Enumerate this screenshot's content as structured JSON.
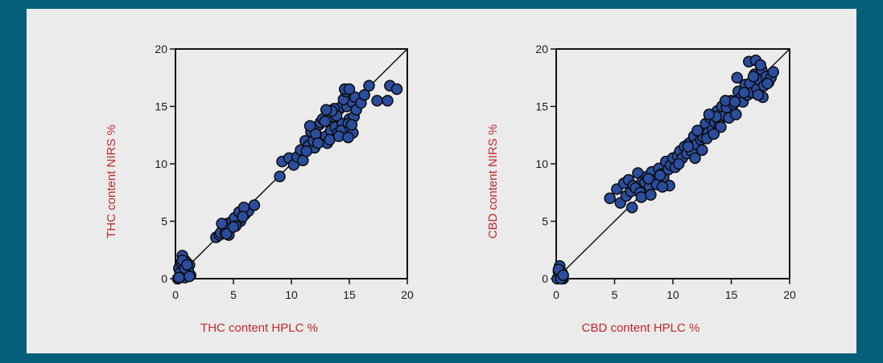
{
  "colors": {
    "background": "#035f7a",
    "panel": "#ebebeb",
    "axis_title": "#c0282d",
    "marker_fill": "#2b4d9c",
    "marker_stroke": "#0a0a0a"
  },
  "chart_data": [
    {
      "type": "scatter",
      "title": "",
      "xlabel": "THC content HPLC %",
      "ylabel": "THC content NIRS %",
      "xlim": [
        0,
        20
      ],
      "ylim": [
        0,
        20
      ],
      "xticks": [
        0,
        5,
        10,
        15,
        20
      ],
      "yticks": [
        0,
        5,
        10,
        15,
        20
      ],
      "grid": false,
      "identity_line": true,
      "series": [
        {
          "x": [
            0.2,
            0.4,
            0.5,
            0.6,
            0.7,
            0.8,
            0.9,
            1.0,
            1.1,
            1.2,
            0.3,
            0.6,
            0.8,
            1.0,
            1.3,
            0.5,
            0.7,
            0.9,
            1.1,
            0.4,
            0.8,
            1.2,
            0.6,
            1.0,
            0.3,
            3.5,
            3.8,
            4.0,
            4.2,
            4.4,
            4.6,
            4.8,
            5.0,
            5.2,
            5.4,
            5.6,
            5.8,
            6.0,
            6.3,
            6.8,
            4.1,
            4.5,
            4.9,
            5.3,
            5.7,
            3.9,
            4.3,
            4.7,
            5.1,
            5.5,
            5.9,
            4.0,
            4.6,
            5.2,
            5.8,
            4.4,
            5.0,
            9.0,
            9.2,
            9.8,
            10.2,
            10.5,
            10.8,
            11.0,
            11.2,
            11.5,
            11.7,
            12.0,
            12.2,
            12.4,
            12.6,
            12.8,
            13.0,
            13.2,
            13.4,
            13.6,
            13.8,
            14.0,
            14.2,
            14.4,
            14.6,
            14.8,
            15.0,
            15.2,
            15.4,
            15.6,
            11.3,
            11.9,
            12.5,
            13.1,
            13.7,
            14.3,
            14.9,
            15.5,
            12.1,
            12.7,
            13.3,
            13.9,
            14.5,
            15.1,
            12.9,
            13.5,
            14.1,
            14.7,
            15.3,
            11.6,
            14.6,
            15.0,
            16.0,
            16.3,
            16.7,
            17.4,
            18.3,
            18.5,
            19.1,
            14.9,
            15.2,
            13.0,
            12.3
          ],
          "y": [
            0.0,
            0.3,
            0.6,
            0.2,
            1.0,
            0.5,
            1.5,
            0.8,
            0.4,
            1.2,
            0.9,
            2.0,
            0.1,
            0.6,
            0.3,
            1.4,
            0.4,
            1.1,
            0.7,
            0.5,
            0.9,
            0.2,
            1.6,
            1.2,
            0.1,
            3.6,
            3.8,
            4.0,
            4.4,
            4.1,
            4.6,
            4.5,
            5.1,
            4.8,
            5.3,
            5.0,
            5.5,
            5.6,
            5.9,
            6.4,
            4.3,
            4.8,
            5.0,
            5.0,
            5.7,
            4.0,
            4.0,
            4.4,
            5.3,
            5.8,
            6.2,
            4.8,
            3.8,
            4.6,
            5.4,
            3.9,
            4.5,
            8.9,
            10.2,
            10.5,
            9.9,
            10.6,
            11.2,
            10.3,
            12.0,
            11.6,
            12.8,
            11.4,
            12.5,
            13.4,
            12.2,
            13.8,
            12.4,
            14.0,
            12.9,
            14.5,
            13.2,
            12.7,
            14.9,
            13.5,
            12.8,
            15.0,
            13.9,
            15.4,
            14.1,
            14.7,
            11.1,
            12.0,
            13.6,
            11.8,
            14.8,
            12.9,
            13.5,
            15.8,
            12.6,
            13.9,
            12.1,
            14.2,
            15.6,
            13.1,
            13.7,
            14.6,
            12.4,
            16.3,
            12.7,
            13.3,
            16.5,
            16.5,
            15.3,
            16.0,
            16.8,
            15.5,
            15.5,
            16.8,
            16.5,
            12.3,
            13.4,
            14.7,
            11.8
          ]
        }
      ]
    },
    {
      "type": "scatter",
      "title": "",
      "xlabel": "CBD content HPLC %",
      "ylabel": "CBD content NIRS %",
      "xlim": [
        0,
        20
      ],
      "ylim": [
        0,
        20
      ],
      "xticks": [
        0,
        5,
        10,
        15,
        20
      ],
      "yticks": [
        0,
        5,
        10,
        15,
        20
      ],
      "grid": false,
      "identity_line": true,
      "series": [
        {
          "x": [
            0.1,
            0.2,
            0.3,
            0.4,
            0.5,
            0.6,
            0.3,
            0.5,
            0.2,
            0.4,
            0.6,
            4.6,
            5.2,
            5.5,
            5.8,
            6.0,
            6.2,
            6.4,
            6.6,
            6.8,
            7.0,
            7.2,
            7.4,
            7.6,
            7.8,
            8.0,
            8.2,
            8.4,
            8.6,
            8.8,
            9.0,
            9.2,
            9.4,
            9.6,
            9.8,
            10.0,
            10.2,
            10.4,
            10.6,
            10.8,
            11.0,
            11.2,
            11.4,
            11.6,
            11.8,
            12.0,
            12.2,
            12.4,
            12.6,
            12.8,
            13.0,
            13.2,
            13.4,
            13.6,
            13.8,
            14.0,
            14.2,
            14.4,
            14.6,
            14.8,
            15.0,
            15.2,
            15.4,
            15.6,
            15.8,
            16.0,
            16.2,
            16.4,
            16.6,
            16.8,
            17.0,
            17.2,
            17.4,
            17.6,
            17.8,
            18.0,
            18.2,
            18.4,
            18.6,
            6.5,
            7.3,
            8.1,
            8.9,
            9.7,
            10.5,
            11.3,
            12.1,
            12.9,
            13.7,
            14.5,
            15.3,
            16.1,
            16.9,
            17.7,
            7.9,
            9.1,
            11.9,
            14.1,
            15.5,
            16.5,
            17.1,
            17.3,
            17.5,
            18.1,
            12.5,
            13.1,
            13.5
          ],
          "y": [
            0.0,
            0.6,
            1.1,
            0.2,
            0.5,
            0.0,
            0.4,
            0.1,
            0.8,
            0.0,
            0.3,
            7.0,
            7.8,
            6.6,
            8.3,
            7.2,
            8.6,
            7.6,
            8.1,
            7.9,
            9.2,
            7.5,
            8.5,
            8.4,
            8.9,
            8.0,
            9.3,
            8.6,
            8.2,
            9.6,
            9.1,
            8.8,
            10.2,
            9.5,
            9.9,
            10.5,
            9.7,
            10.7,
            11.1,
            10.5,
            11.5,
            10.9,
            11.8,
            11.1,
            12.4,
            11.7,
            12.8,
            12.1,
            12.3,
            13.5,
            12.7,
            14.0,
            13.0,
            13.6,
            14.6,
            13.4,
            15.0,
            14.2,
            14.9,
            14.0,
            15.5,
            15.2,
            14.3,
            16.3,
            15.7,
            15.4,
            16.9,
            16.0,
            17.0,
            16.2,
            17.8,
            16.5,
            17.3,
            18.2,
            16.8,
            17.6,
            17.1,
            17.5,
            18.0,
            6.2,
            7.1,
            7.3,
            9.0,
            8.1,
            10.0,
            11.5,
            12.9,
            12.2,
            14.1,
            15.5,
            15.4,
            16.2,
            17.6,
            15.8,
            8.7,
            8.0,
            10.5,
            13.2,
            17.5,
            18.9,
            19.0,
            16.0,
            18.6,
            17.0,
            11.2,
            14.3,
            12.6
          ]
        }
      ]
    }
  ]
}
